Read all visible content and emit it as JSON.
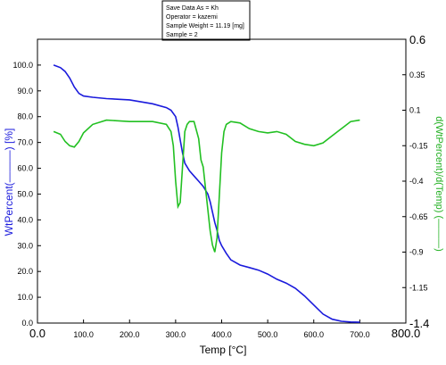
{
  "info_box": {
    "lines": [
      "Save Data As = Kh",
      "Operator = kazemi",
      "Sample Weight = 11.19 [mg]",
      "Sample = 2"
    ]
  },
  "chart_data": {
    "type": "line",
    "xlabel": "Temp [°C]",
    "ylabel_left": "WtPercent(———) [%]",
    "ylabel_right": "d(WtPercent)/d(Temp) (———)",
    "xlim": [
      0,
      800
    ],
    "ylim_left": [
      0,
      110
    ],
    "ylim_right": [
      -1.4,
      0.6
    ],
    "x_ticks": [
      "0.0",
      "100.0",
      "200.0",
      "300.0",
      "400.0",
      "500.0",
      "600.0",
      "700.0",
      "800.0"
    ],
    "x_tick_values": [
      0,
      100,
      200,
      300,
      400,
      500,
      600,
      700,
      800
    ],
    "y_left_ticks": [
      "0.0",
      "10.0",
      "20.0",
      "30.0",
      "40.0",
      "50.0",
      "60.0",
      "70.0",
      "80.0",
      "90.0",
      "100.0"
    ],
    "y_left_tick_values": [
      0,
      10,
      20,
      30,
      40,
      50,
      60,
      70,
      80,
      90,
      100
    ],
    "y_right_ticks": [
      "0.6",
      "0.35",
      "0.1",
      "-0.15",
      "-0.4",
      "-0.65",
      "-0.9",
      "-1.15",
      "-1.4"
    ],
    "y_right_tick_values": [
      0.6,
      0.35,
      0.1,
      -0.15,
      -0.4,
      -0.65,
      -0.9,
      -1.15,
      -1.4
    ],
    "colors": {
      "weight": "#1a1adc",
      "derivative": "#22c022"
    },
    "series": [
      {
        "axis": "left",
        "x": [
          35,
          50,
          60,
          70,
          80,
          90,
          100,
          120,
          150,
          200,
          250,
          280,
          290,
          300,
          305,
          310,
          315,
          320,
          330,
          340,
          350,
          360,
          370,
          375,
          380,
          385,
          390,
          395,
          400,
          410,
          420,
          440,
          460,
          480,
          500,
          520,
          540,
          560,
          580,
          600,
          620,
          640,
          660,
          680,
          700
        ],
        "values": [
          100.0,
          99.0,
          97.5,
          95.0,
          91.5,
          89.0,
          88.0,
          87.5,
          87.0,
          86.5,
          85.0,
          83.5,
          82.5,
          80.0,
          76.0,
          71.0,
          66.0,
          62.0,
          59.0,
          57.0,
          55.0,
          53.0,
          50.0,
          47.0,
          43.0,
          39.0,
          36.0,
          32.0,
          30.0,
          27.0,
          24.5,
          22.5,
          21.5,
          20.5,
          19.0,
          17.0,
          15.5,
          13.5,
          10.5,
          7.0,
          3.5,
          1.5,
          0.7,
          0.4,
          0.3
        ]
      },
      {
        "axis": "right",
        "x": [
          35,
          50,
          60,
          70,
          80,
          90,
          100,
          120,
          150,
          200,
          250,
          280,
          290,
          295,
          300,
          305,
          310,
          315,
          320,
          325,
          330,
          340,
          350,
          355,
          360,
          365,
          370,
          375,
          380,
          385,
          390,
          395,
          400,
          405,
          410,
          420,
          440,
          460,
          480,
          500,
          520,
          540,
          560,
          580,
          600,
          620,
          640,
          660,
          680,
          700
        ],
        "values": [
          -0.05,
          -0.07,
          -0.12,
          -0.15,
          -0.16,
          -0.12,
          -0.06,
          0.0,
          0.03,
          0.02,
          0.02,
          0.0,
          -0.05,
          -0.15,
          -0.4,
          -0.58,
          -0.55,
          -0.3,
          -0.05,
          0.0,
          0.02,
          0.02,
          -0.1,
          -0.25,
          -0.3,
          -0.45,
          -0.6,
          -0.75,
          -0.85,
          -0.9,
          -0.8,
          -0.5,
          -0.2,
          -0.05,
          0.0,
          0.02,
          0.01,
          -0.03,
          -0.05,
          -0.06,
          -0.05,
          -0.07,
          -0.12,
          -0.14,
          -0.15,
          -0.13,
          -0.08,
          -0.03,
          0.02,
          0.03
        ]
      }
    ]
  }
}
